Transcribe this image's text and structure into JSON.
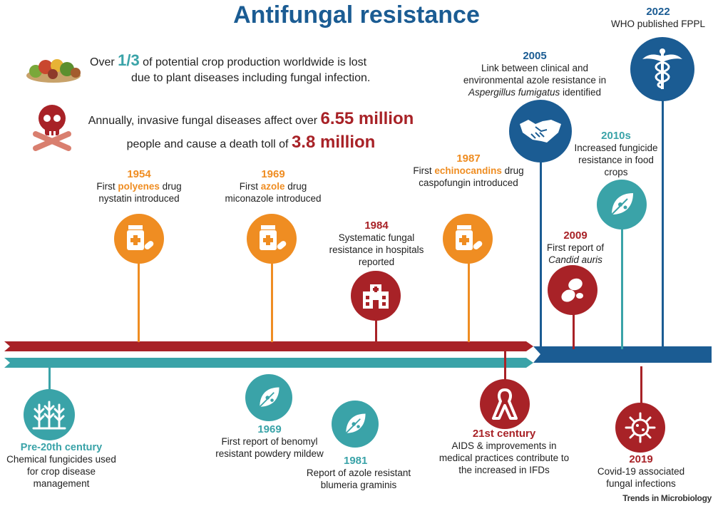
{
  "title": "Antifungal resistance",
  "stats": {
    "crop_pre": "Over ",
    "crop_value": "1/3",
    "crop_post": " of potential crop production worldwide is lost",
    "crop_line2": "due to plant diseases including fungal infection.",
    "disease_pre": "Annually, invasive fungal diseases affect over ",
    "disease_value": "6.55 million",
    "disease_line2_pre": "people and cause a death toll of ",
    "disease_death": "3.8 million"
  },
  "events_top": {
    "e1954": {
      "year": "1954",
      "pre": "First ",
      "hl": "polyenes",
      "post": " drug",
      "line2": "nystatin introduced"
    },
    "e1969": {
      "year": "1969",
      "pre": "First ",
      "hl": "azole",
      "post": " drug",
      "line2": "miconazole introduced"
    },
    "e1984": {
      "year": "1984",
      "line1": "Systematic fungal",
      "line2": "resistance in hospitals",
      "line3": "reported"
    },
    "e1987": {
      "year": "1987",
      "pre": "First ",
      "hl": "echinocandins",
      "post": " drug",
      "line2": "caspofungin introduced"
    },
    "e2005": {
      "year": "2005",
      "line1": "Link between clinical and",
      "line2": "environmental azole resistance in",
      "line3_italic": "Aspergillus fumigatus",
      "line3_post": " identified"
    },
    "e2009": {
      "year": "2009",
      "line1": "First report of",
      "line2_italic": "Candid auris"
    },
    "e2010s": {
      "year": "2010s",
      "line1": "Increased fungicide",
      "line2": "resistance in food",
      "line3": "crops"
    },
    "e2022": {
      "year": "2022",
      "line1": "WHO published FPPL"
    }
  },
  "events_bottom": {
    "pre20": {
      "year": "Pre-20th century",
      "line1": "Chemical fungicides used",
      "line2": "for crop disease",
      "line3": "management"
    },
    "b1969": {
      "year": "1969",
      "line1": "First report of benomyl",
      "line2": "resistant powdery mildew"
    },
    "b1981": {
      "year": "1981",
      "line1": "Report of azole resistant",
      "line2": "blumeria graminis"
    },
    "c21": {
      "year": "21st century",
      "line1": "AIDS & improvements  in",
      "line2": "medical practices contribute to",
      "line3": "the increased in IFDs"
    },
    "b2019": {
      "year": "2019",
      "line1": "Covid-19 associated",
      "line2": "fungal infections"
    }
  },
  "credit": "Trends in Microbiology",
  "icons": [
    "vegetables-icon",
    "skull-crossbones-icon",
    "medicine-bottle-icon",
    "hospital-icon",
    "handshake-icon",
    "caduceus-icon",
    "cells-icon",
    "leaf-icon",
    "plants-icon",
    "awareness-ribbon-icon",
    "virus-icon"
  ],
  "colors": {
    "orange": "#ef8d22",
    "red": "#a82227",
    "teal": "#3aa3a8",
    "blue": "#1b5c93"
  }
}
